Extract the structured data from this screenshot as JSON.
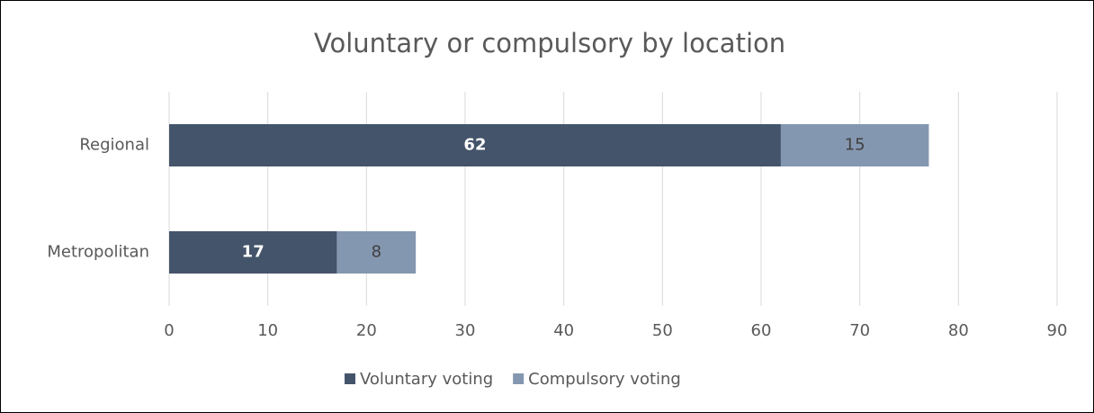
{
  "chart_data": {
    "type": "bar",
    "orientation": "horizontal",
    "stacked": true,
    "title": "Voluntary or compulsory by location",
    "categories": [
      "Regional",
      "Metropolitan"
    ],
    "series": [
      {
        "name": "Voluntary voting",
        "color": "#44546a",
        "values": [
          62,
          17
        ]
      },
      {
        "name": "Compulsory voting",
        "color": "#8497b0",
        "values": [
          15,
          8
        ]
      }
    ],
    "xlim": [
      0,
      90
    ],
    "xticks": [
      0,
      10,
      20,
      30,
      40,
      50,
      60,
      70,
      80,
      90
    ],
    "grid": true,
    "data_labels": true,
    "legend": "bottom"
  }
}
